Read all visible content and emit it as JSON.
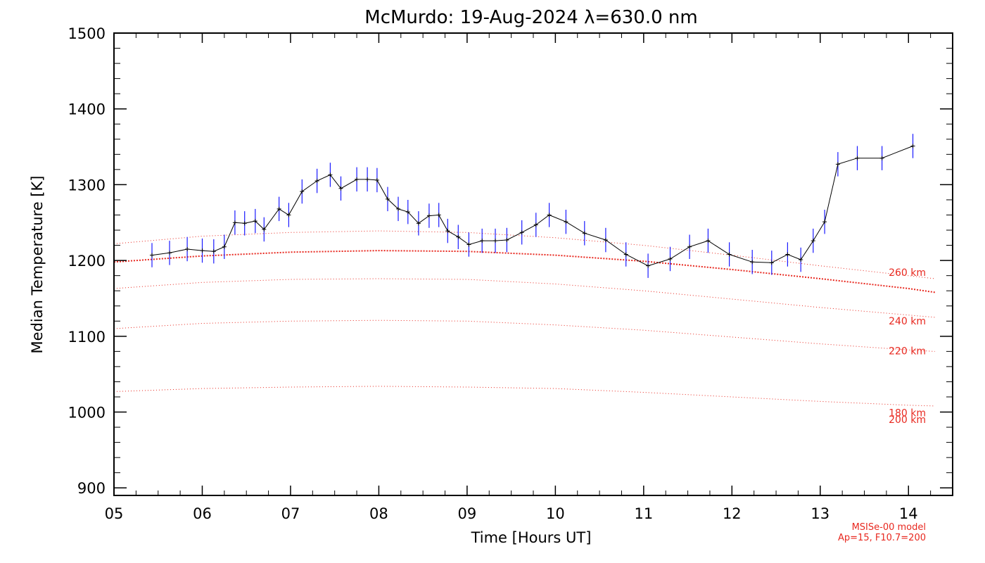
{
  "chart_data": {
    "type": "line",
    "title": "McMurdo: 19-Aug-2024 λ=630.0 nm",
    "xlabel": "Time [Hours UT]",
    "ylabel": "Median Temperature [K]",
    "xlim": [
      5,
      14.5
    ],
    "ylim": [
      890,
      1500
    ],
    "x_ticks": [
      5,
      6,
      7,
      8,
      9,
      10,
      11,
      12,
      13,
      14
    ],
    "x_tick_labels": [
      "05",
      "06",
      "07",
      "08",
      "09",
      "10",
      "11",
      "12",
      "13",
      "14"
    ],
    "y_ticks": [
      900,
      1000,
      1100,
      1200,
      1300,
      1400,
      1500
    ],
    "y_tick_labels": [
      "900",
      "1000",
      "1100",
      "1200",
      "1300",
      "1400",
      "1500"
    ],
    "grid": false,
    "series": [
      {
        "name": "",
        "color": "#000000",
        "errorbar_color": "#1a1aff",
        "errorbar_halfwidth": 16,
        "x": [
          5.43,
          5.63,
          5.83,
          6.0,
          6.13,
          6.25,
          6.37,
          6.48,
          6.6,
          6.7,
          6.87,
          6.98,
          7.13,
          7.3,
          7.45,
          7.57,
          7.75,
          7.87,
          7.98,
          8.1,
          8.22,
          8.33,
          8.45,
          8.57,
          8.68,
          8.78,
          8.9,
          9.02,
          9.17,
          9.32,
          9.45,
          9.62,
          9.78,
          9.93,
          10.12,
          10.33,
          10.57,
          10.8,
          11.05,
          11.3,
          11.52,
          11.73,
          11.97,
          12.23,
          12.45,
          12.63,
          12.78,
          12.92,
          13.05,
          13.2,
          13.42,
          13.7,
          14.05
        ],
        "y": [
          1207,
          1210,
          1215,
          1213,
          1212,
          1218,
          1250,
          1249,
          1252,
          1241,
          1268,
          1260,
          1291,
          1305,
          1313,
          1295,
          1307,
          1307,
          1306,
          1281,
          1268,
          1264,
          1249,
          1259,
          1260,
          1239,
          1231,
          1221,
          1226,
          1226,
          1227,
          1237,
          1247,
          1260,
          1251,
          1236,
          1227,
          1208,
          1193,
          1202,
          1218,
          1226,
          1208,
          1198,
          1197,
          1208,
          1201,
          1226,
          1251,
          1327,
          1335,
          1335,
          1351
        ]
      }
    ],
    "model_curves": {
      "color": "#e8281f",
      "x": [
        5.0,
        6.0,
        7.0,
        8.0,
        9.0,
        10.0,
        11.0,
        12.0,
        13.0,
        14.0,
        14.3
      ],
      "curves": [
        {
          "label": "260 km",
          "emphasized": false,
          "y": [
            1222,
            1232,
            1237,
            1239,
            1237,
            1230,
            1220,
            1207,
            1193,
            1180,
            1176
          ]
        },
        {
          "label": "",
          "emphasized": true,
          "y": [
            1198,
            1206,
            1211,
            1213,
            1212,
            1207,
            1199,
            1188,
            1176,
            1163,
            1158
          ]
        },
        {
          "label": "240 km",
          "emphasized": false,
          "y": [
            1163,
            1171,
            1175,
            1176,
            1175,
            1169,
            1160,
            1149,
            1138,
            1128,
            1125
          ]
        },
        {
          "label": "220 km",
          "emphasized": false,
          "y": [
            1110,
            1117,
            1120,
            1121,
            1120,
            1115,
            1108,
            1099,
            1090,
            1082,
            1080
          ]
        },
        {
          "label": "200 km",
          "emphasized": false,
          "y": [
            1027,
            1031,
            1033,
            1034,
            1033,
            1031,
            1026,
            1020,
            1014,
            1009,
            1008
          ]
        }
      ],
      "extra_labels": [
        {
          "text": "180 km",
          "y": 1000
        }
      ]
    },
    "notes": [
      "MSISe-00 model",
      "Ap=15, F10.7=200"
    ]
  }
}
